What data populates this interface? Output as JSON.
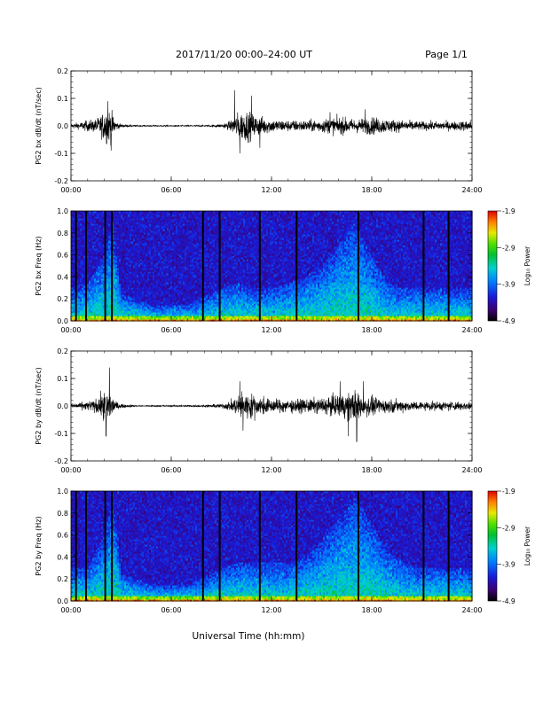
{
  "header": {
    "title": "2017/11/20   00:00–24:00 UT",
    "page": "Page 1/1"
  },
  "xlabel": "Universal Time (hh:mm)",
  "chart_data": [
    {
      "type": "line",
      "ylabel": "PG2 bx dB/dt (nT/sec)",
      "xlim": [
        0,
        24
      ],
      "ylim": [
        -0.2,
        0.2
      ],
      "xticks": [
        "00:00",
        "06:00",
        "12:00",
        "18:00",
        "24:00"
      ],
      "yticks": [
        "-0.2",
        "-0.1",
        "0.0",
        "0.1",
        "0.2"
      ],
      "envelope_hours": [
        0,
        0.5,
        1,
        1.5,
        1.8,
        2.1,
        2.4,
        2.7,
        3,
        4,
        6,
        8,
        9,
        9.5,
        10,
        10.5,
        11,
        11.5,
        12,
        13,
        14,
        15,
        16,
        17,
        18,
        19,
        20,
        21,
        22,
        23,
        24
      ],
      "envelope_amp": [
        0.01,
        0.015,
        0.025,
        0.03,
        0.05,
        0.08,
        0.07,
        0.02,
        0.008,
        0.003,
        0.003,
        0.003,
        0.008,
        0.02,
        0.06,
        0.07,
        0.05,
        0.04,
        0.03,
        0.025,
        0.025,
        0.03,
        0.04,
        0.03,
        0.04,
        0.03,
        0.025,
        0.02,
        0.02,
        0.02,
        0.025
      ],
      "peaks": [
        {
          "x": 2.2,
          "y": 0.09
        },
        {
          "x": 2.4,
          "y": -0.09
        },
        {
          "x": 9.8,
          "y": 0.13
        },
        {
          "x": 10.1,
          "y": -0.1
        },
        {
          "x": 10.8,
          "y": 0.11
        },
        {
          "x": 11.3,
          "y": -0.08
        },
        {
          "x": 15.5,
          "y": 0.05
        },
        {
          "x": 17.6,
          "y": 0.06
        }
      ]
    },
    {
      "type": "heatmap",
      "ylabel": "PG2 bx Freq (Hz)",
      "xlim": [
        0,
        24
      ],
      "ylim": [
        0,
        1.0
      ],
      "xticks": [
        "00:00",
        "06:00",
        "12:00",
        "18:00",
        "24:00"
      ],
      "yticks": [
        "0.0",
        "0.2",
        "0.4",
        "0.6",
        "0.8",
        "1.0"
      ],
      "colorbar": {
        "label": "Log₁₀ Power",
        "range": [
          -4.9,
          -1.9
        ],
        "ticks": [
          "-1.9",
          "-2.9",
          "-3.9",
          "-4.9"
        ]
      },
      "activity_hours": [
        0,
        1,
        2,
        2.5,
        3,
        5,
        7,
        9,
        10,
        11,
        12,
        13,
        14,
        15,
        16,
        17,
        18,
        19,
        20,
        21,
        22,
        23,
        24
      ],
      "activity_top_hz": [
        0.3,
        0.35,
        0.6,
        0.9,
        0.25,
        0.15,
        0.15,
        0.3,
        0.35,
        0.3,
        0.3,
        0.35,
        0.4,
        0.5,
        0.7,
        0.9,
        0.6,
        0.35,
        0.3,
        0.3,
        0.3,
        0.3,
        0.3
      ],
      "gap_hours": [
        0.3,
        0.9,
        2.05,
        2.45,
        7.9,
        8.9,
        11.3,
        13.5,
        17.2,
        21.1,
        22.6
      ]
    },
    {
      "type": "line",
      "ylabel": "PG2 by dB/dt (nT/sec)",
      "xlim": [
        0,
        24
      ],
      "ylim": [
        -0.2,
        0.2
      ],
      "xticks": [
        "00:00",
        "06:00",
        "12:00",
        "18:00",
        "24:00"
      ],
      "yticks": [
        "-0.2",
        "-0.1",
        "0.0",
        "0.1",
        "0.2"
      ],
      "envelope_hours": [
        0,
        0.5,
        1,
        1.5,
        1.8,
        2.1,
        2.4,
        2.7,
        3,
        4,
        6,
        8,
        9,
        9.5,
        10,
        10.5,
        11,
        11.5,
        12,
        13,
        14,
        15,
        16,
        17,
        18,
        19,
        20,
        21,
        22,
        23,
        24
      ],
      "envelope_amp": [
        0.01,
        0.015,
        0.02,
        0.03,
        0.05,
        0.07,
        0.06,
        0.02,
        0.008,
        0.003,
        0.003,
        0.005,
        0.01,
        0.02,
        0.05,
        0.06,
        0.05,
        0.04,
        0.03,
        0.03,
        0.03,
        0.035,
        0.05,
        0.07,
        0.04,
        0.03,
        0.025,
        0.02,
        0.02,
        0.02,
        0.02
      ],
      "peaks": [
        {
          "x": 2.3,
          "y": 0.14
        },
        {
          "x": 2.1,
          "y": -0.11
        },
        {
          "x": 10.1,
          "y": 0.09
        },
        {
          "x": 10.3,
          "y": -0.09
        },
        {
          "x": 16.1,
          "y": 0.09
        },
        {
          "x": 16.6,
          "y": -0.11
        },
        {
          "x": 17.1,
          "y": -0.13
        },
        {
          "x": 17.5,
          "y": 0.09
        }
      ]
    },
    {
      "type": "heatmap",
      "ylabel": "PG2 by Freq (Hz)",
      "xlim": [
        0,
        24
      ],
      "ylim": [
        0,
        1.0
      ],
      "xticks": [
        "00:00",
        "06:00",
        "12:00",
        "18:00",
        "24:00"
      ],
      "yticks": [
        "0.0",
        "0.2",
        "0.4",
        "0.6",
        "0.8",
        "1.0"
      ],
      "colorbar": {
        "label": "Log₁₀ Power",
        "range": [
          -4.9,
          -1.9
        ],
        "ticks": [
          "-1.9",
          "-2.9",
          "-3.9",
          "-4.9"
        ]
      },
      "activity_hours": [
        0,
        1,
        2,
        2.5,
        3,
        5,
        7,
        9,
        10,
        11,
        12,
        13,
        14,
        15,
        16,
        17,
        18,
        19,
        20,
        21,
        22,
        23,
        24
      ],
      "activity_top_hz": [
        0.3,
        0.3,
        0.6,
        0.95,
        0.25,
        0.15,
        0.15,
        0.3,
        0.35,
        0.35,
        0.35,
        0.35,
        0.4,
        0.55,
        0.75,
        0.95,
        0.7,
        0.45,
        0.35,
        0.3,
        0.3,
        0.3,
        0.3
      ],
      "gap_hours": [
        0.3,
        0.9,
        2.05,
        2.45,
        7.9,
        8.9,
        11.3,
        13.5,
        17.2,
        21.1,
        22.6
      ]
    }
  ]
}
